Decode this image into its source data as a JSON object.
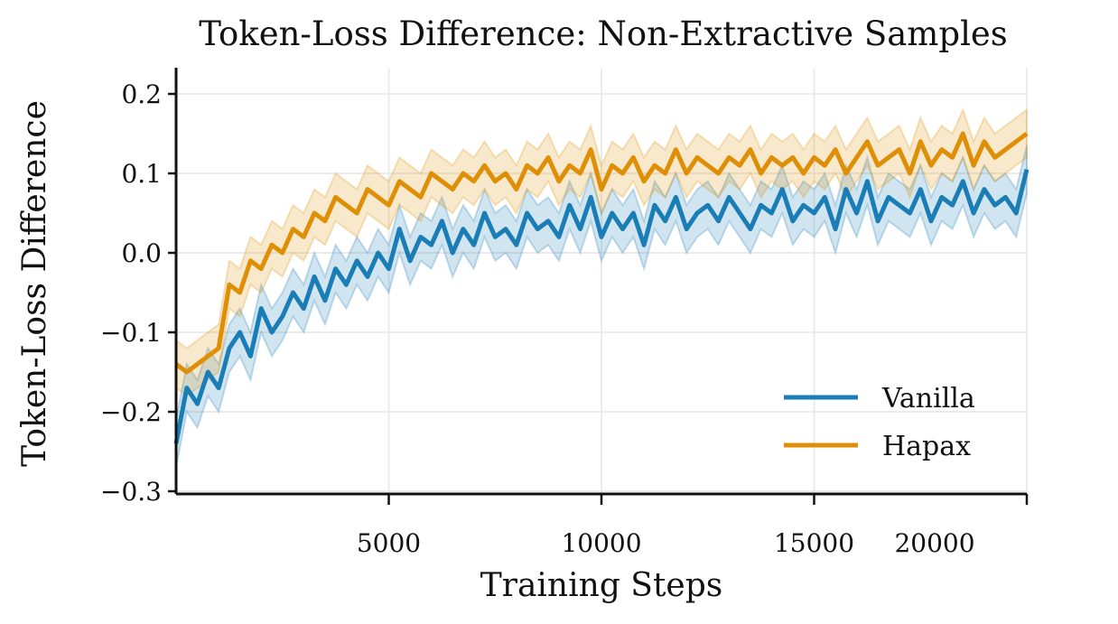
{
  "chart_data": {
    "type": "line",
    "title": "Token-Loss Difference: Non-Extractive Samples",
    "xlabel": "Training Steps",
    "ylabel": "Token-Loss Difference",
    "xlim": [
      0,
      20000
    ],
    "ylim": [
      -0.3,
      0.23
    ],
    "xticks": [
      5000,
      10000,
      15000,
      20000
    ],
    "xtick_labels": [
      "5000",
      "10000",
      "15000",
      "20000"
    ],
    "yticks": [
      -0.3,
      -0.2,
      -0.1,
      0.0,
      0.1,
      0.2
    ],
    "ytick_labels": [
      "−0.3",
      "−0.2",
      "−0.1",
      "0.0",
      "0.1",
      "0.2"
    ],
    "grid": true,
    "legend_placement": "bottom-right",
    "x_step": 250,
    "series": [
      {
        "name": "Vanilla",
        "color": "#1a7db6",
        "ci_halfwidth": 0.03,
        "values": [
          -0.24,
          -0.17,
          -0.19,
          -0.15,
          -0.17,
          -0.12,
          -0.1,
          -0.13,
          -0.07,
          -0.1,
          -0.08,
          -0.05,
          -0.07,
          -0.03,
          -0.06,
          -0.02,
          -0.04,
          -0.01,
          -0.03,
          0.0,
          -0.02,
          0.03,
          -0.01,
          0.02,
          0.01,
          0.04,
          0.0,
          0.03,
          0.01,
          0.05,
          0.02,
          0.03,
          0.01,
          0.05,
          0.03,
          0.04,
          0.02,
          0.06,
          0.03,
          0.07,
          0.02,
          0.05,
          0.03,
          0.05,
          0.01,
          0.06,
          0.04,
          0.07,
          0.03,
          0.05,
          0.06,
          0.04,
          0.07,
          0.05,
          0.03,
          0.06,
          0.05,
          0.08,
          0.04,
          0.06,
          0.05,
          0.07,
          0.03,
          0.08,
          0.05,
          0.09,
          0.04,
          0.07,
          0.06,
          0.05,
          0.08,
          0.04,
          0.07,
          0.06,
          0.09,
          0.05,
          0.08,
          0.06,
          0.07,
          0.05,
          0.105
        ]
      },
      {
        "name": "Hapax",
        "color": "#de8f05",
        "ci_halfwidth": 0.03,
        "values": [
          -0.14,
          -0.15,
          -0.14,
          -0.13,
          -0.12,
          -0.04,
          -0.05,
          -0.01,
          -0.02,
          0.01,
          0.0,
          0.03,
          0.02,
          0.05,
          0.04,
          0.07,
          0.06,
          0.05,
          0.08,
          0.07,
          0.06,
          0.09,
          0.08,
          0.07,
          0.1,
          0.09,
          0.08,
          0.1,
          0.09,
          0.11,
          0.09,
          0.1,
          0.08,
          0.11,
          0.1,
          0.12,
          0.09,
          0.11,
          0.1,
          0.13,
          0.08,
          0.11,
          0.1,
          0.12,
          0.09,
          0.11,
          0.1,
          0.13,
          0.1,
          0.12,
          0.11,
          0.1,
          0.12,
          0.11,
          0.13,
          0.1,
          0.12,
          0.11,
          0.12,
          0.1,
          0.12,
          0.11,
          0.13,
          0.1,
          0.12,
          0.14,
          0.11,
          0.12,
          0.13,
          0.1,
          0.14,
          0.11,
          0.13,
          0.12,
          0.15,
          0.11,
          0.14,
          0.12,
          0.13,
          0.14,
          0.15
        ]
      }
    ]
  }
}
